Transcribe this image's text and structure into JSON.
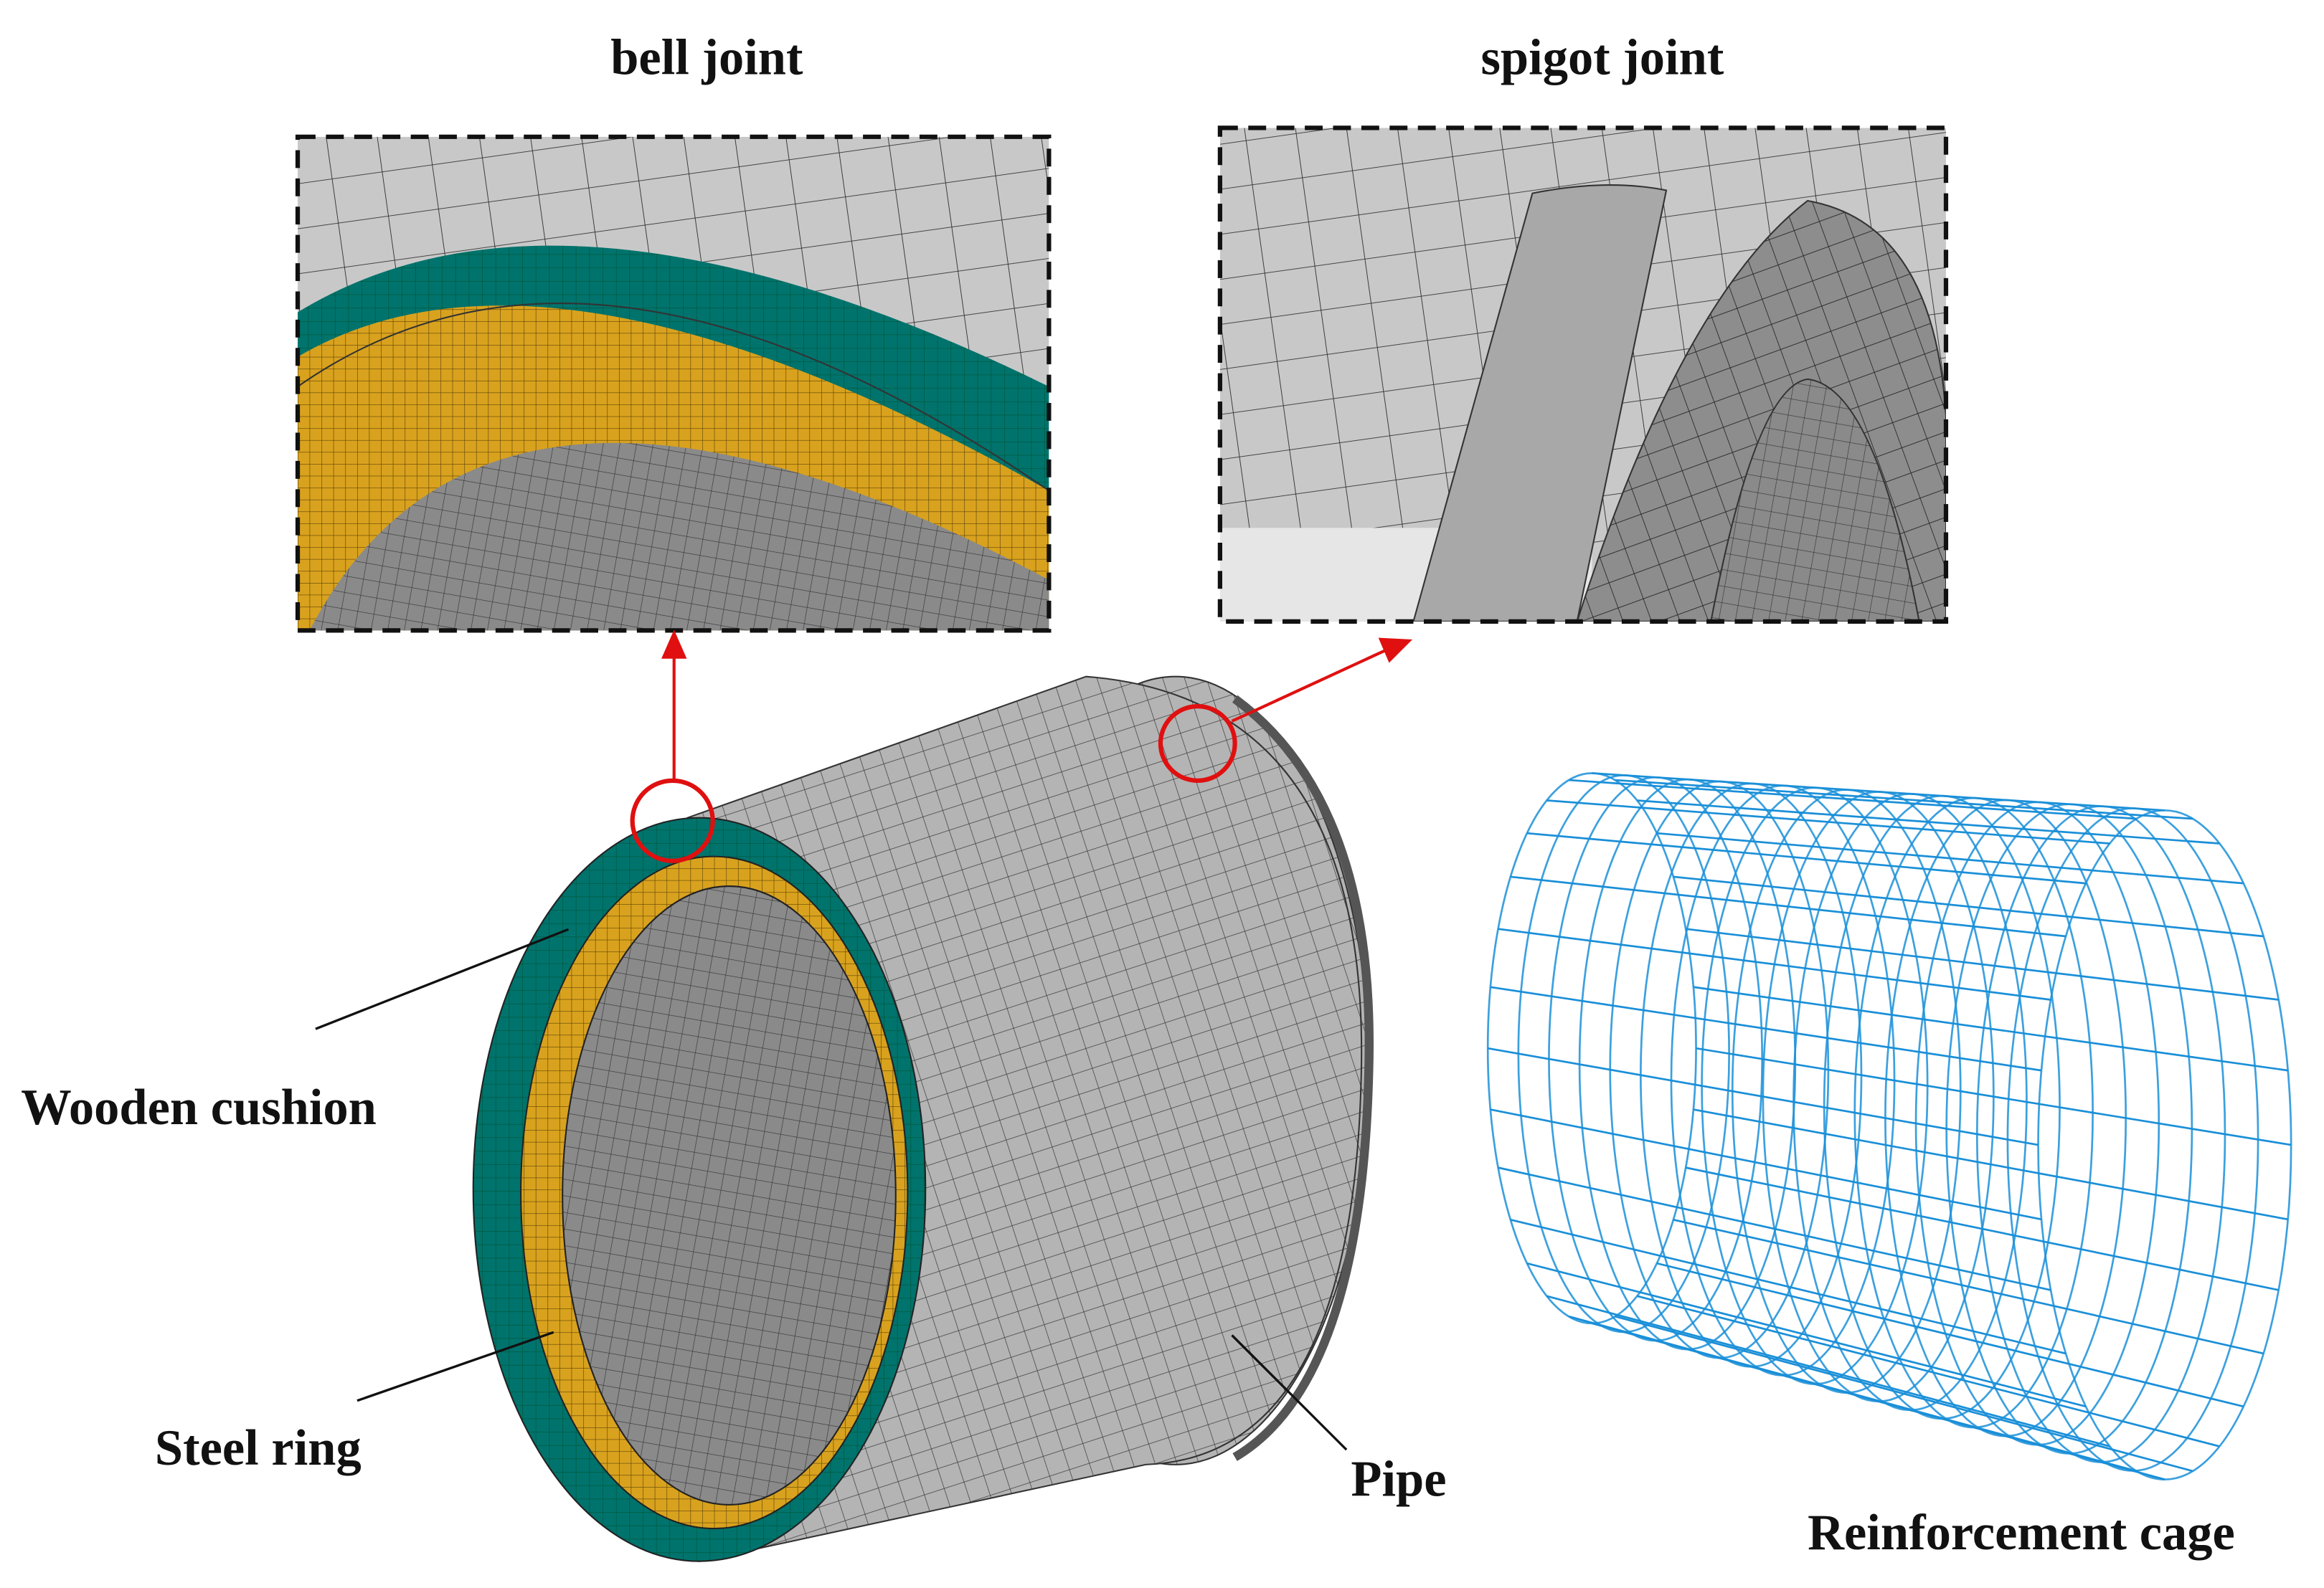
{
  "insets": [
    {
      "title": "bell joint"
    },
    {
      "title": "spigot joint"
    }
  ],
  "callouts": [
    {
      "label": "Wooden cushion"
    },
    {
      "label": "Steel ring"
    },
    {
      "label": "Pipe"
    },
    {
      "label": "Reinforcement cage"
    }
  ]
}
